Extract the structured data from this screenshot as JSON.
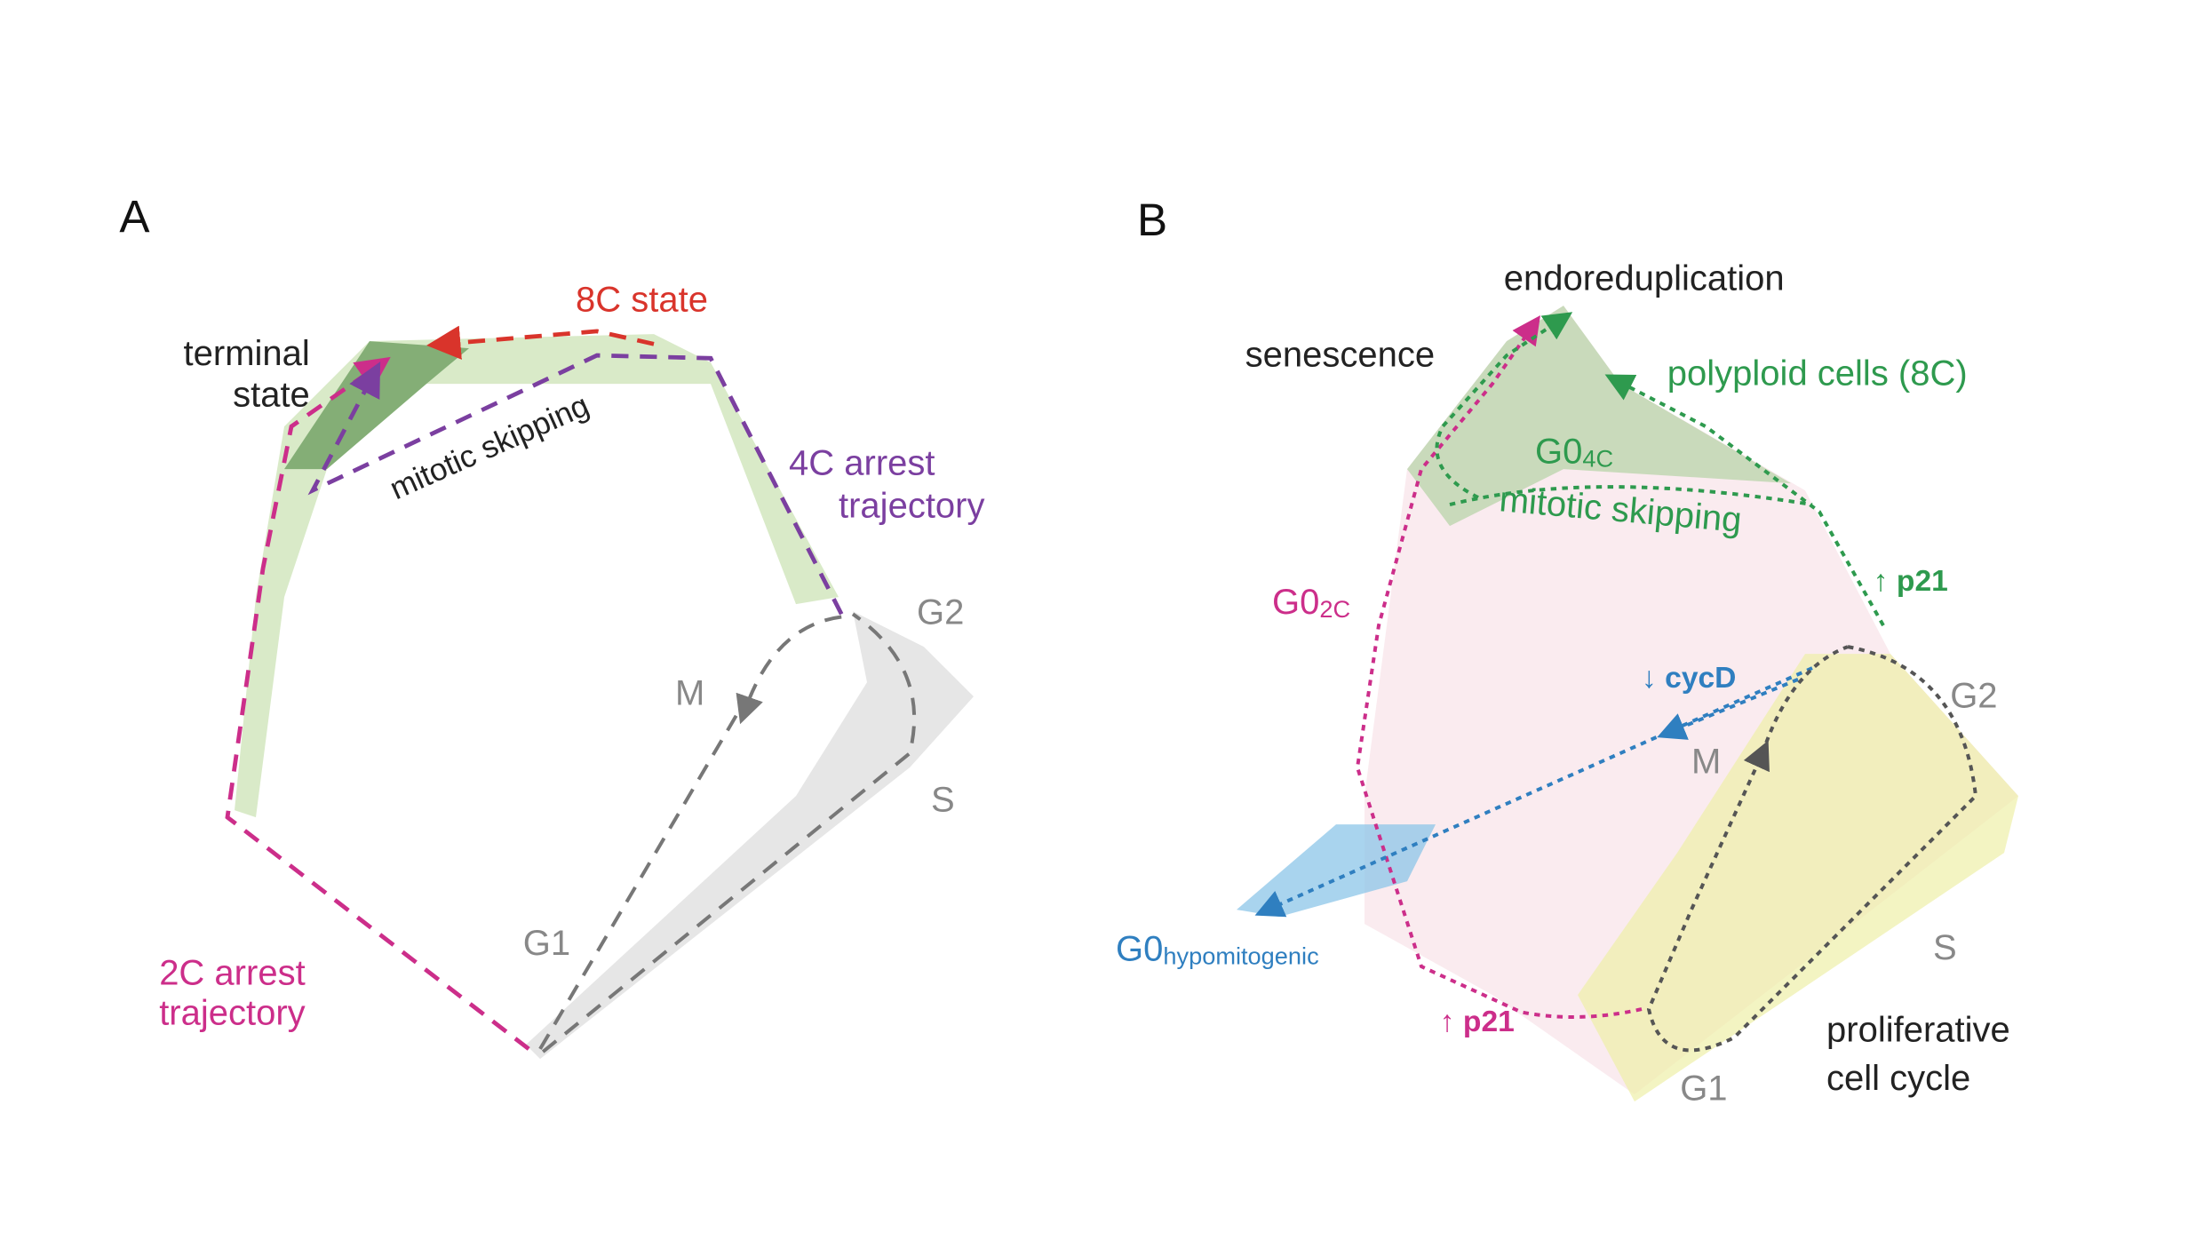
{
  "panels": [
    {
      "letter": "A",
      "labels": [
        {
          "text": "8C state"
        },
        {
          "lines": [
            "terminal",
            "state"
          ]
        },
        {
          "text": "mitotic skipping"
        },
        {
          "lines": [
            "4C arrest",
            "trajectory"
          ]
        },
        {
          "text": "G2"
        },
        {
          "text": "M"
        },
        {
          "text": "S"
        },
        {
          "text": "G1"
        },
        {
          "lines": [
            "2C arrest",
            "trajectory"
          ]
        }
      ]
    },
    {
      "letter": "B",
      "labels": [
        {
          "text": "endoreduplication"
        },
        {
          "text": "senescence"
        },
        {
          "text": "polyploid cells (8C)"
        },
        {
          "text": "G0",
          "sub": "4C"
        },
        {
          "text": "mitotic skipping"
        },
        {
          "text": "↑ p21"
        },
        {
          "text": "G0",
          "sub": "2C"
        },
        {
          "text": "↓ cycD"
        },
        {
          "text": "G2"
        },
        {
          "text": "M"
        },
        {
          "text": "S"
        },
        {
          "text": "G1"
        },
        {
          "text": "G0",
          "sub": "hypomitogenic"
        },
        {
          "text": "↑ p21"
        },
        {
          "lines": [
            "proliferative",
            "cell cycle"
          ]
        }
      ]
    }
  ]
}
